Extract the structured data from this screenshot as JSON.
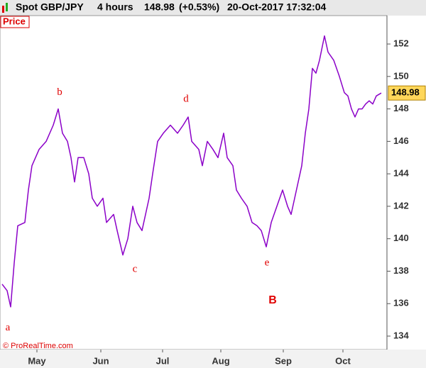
{
  "chart_data": {
    "type": "line",
    "instrument": "Spot GBP/JPY",
    "timeframe": "4 hours",
    "last": 148.98,
    "change": "(+0.53%)",
    "datetime": "20-Oct-2017 17:32:04",
    "panel_label": "Price",
    "copyright": "© ProRealTime.com",
    "x": [
      3,
      10,
      15,
      20,
      25,
      35,
      40,
      45,
      55,
      65,
      75,
      82,
      88,
      95,
      100,
      105,
      110,
      118,
      125,
      130,
      137,
      145,
      150,
      160,
      165,
      173,
      180,
      187,
      193,
      200,
      210,
      215,
      222,
      230,
      240,
      250,
      258,
      265,
      270,
      280,
      285,
      292,
      300,
      307,
      315,
      320,
      328,
      333,
      340,
      348,
      355,
      362,
      368,
      375,
      382,
      390,
      398,
      405,
      410,
      415,
      425,
      430,
      435,
      440,
      445,
      450,
      457,
      462,
      470,
      478,
      485,
      490,
      495,
      500,
      505,
      510,
      515,
      520,
      525,
      530,
      537
    ],
    "series": [
      {
        "color": "#8b00c8",
        "values": [
          137.2,
          136.8,
          135.8,
          138.5,
          140.8,
          141,
          143,
          144.5,
          145.5,
          146,
          147,
          148,
          146.5,
          146,
          145,
          143.5,
          145,
          145,
          144,
          142.5,
          142,
          142.5,
          141,
          141.5,
          140.5,
          139,
          140,
          142,
          141,
          140.5,
          142.5,
          144,
          146,
          146.5,
          147,
          146.5,
          147,
          147.5,
          146,
          145.5,
          144.5,
          146,
          145.5,
          145,
          146.5,
          145,
          144.5,
          143,
          142.5,
          142,
          141,
          140.8,
          140.5,
          139.5,
          141,
          142,
          143,
          142,
          141.5,
          142.5,
          144.5,
          146.5,
          148,
          150.5,
          150.2,
          151,
          152.5,
          151.5,
          151,
          150,
          149,
          148.8,
          148,
          147.5,
          148,
          148,
          148.3,
          148.5,
          148.3,
          148.8,
          148.98
        ]
      }
    ],
    "xlim": [
      0,
      545
    ],
    "xticks": [
      {
        "value": 52,
        "label": "May"
      },
      {
        "value": 142,
        "label": "Jun"
      },
      {
        "value": 229,
        "label": "Jul"
      },
      {
        "value": 311,
        "label": "Aug"
      },
      {
        "value": 399,
        "label": "Sep"
      },
      {
        "value": 483,
        "label": "Oct"
      }
    ],
    "ylim": [
      133.17,
      153.75
    ],
    "yticks": [
      134,
      136,
      138,
      140,
      142,
      144,
      146,
      148,
      150,
      152
    ],
    "annotations": [
      {
        "text": "a",
        "x": 11,
        "y": 134.5
      },
      {
        "text": "b",
        "x": 84,
        "y": 149
      },
      {
        "text": "c",
        "x": 190,
        "y": 138.1
      },
      {
        "text": "d",
        "x": 262,
        "y": 148.6
      },
      {
        "text": "e",
        "x": 376,
        "y": 138.5
      },
      {
        "text": "B",
        "x": 384,
        "y": 136.2,
        "bold": true
      }
    ]
  }
}
